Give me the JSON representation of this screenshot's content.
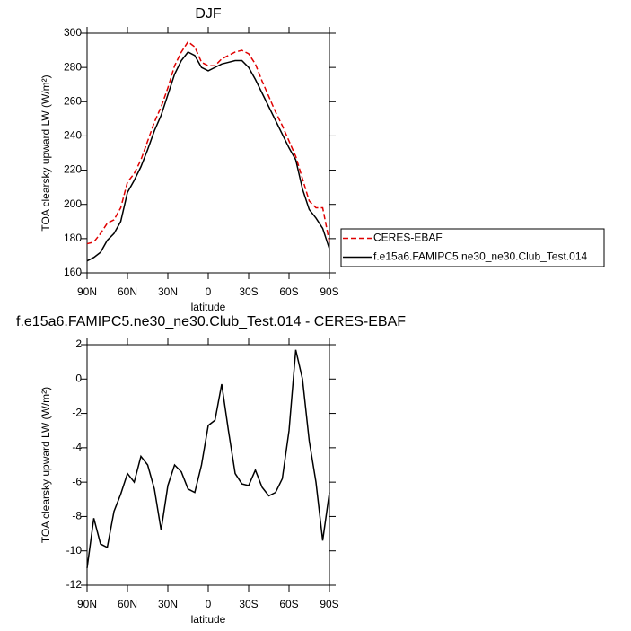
{
  "chart_data": [
    {
      "type": "line",
      "title": "DJF",
      "xlabel": "latitude",
      "ylabel": "TOA clearsky upward LW (W/m²)",
      "x": [
        90,
        85,
        80,
        75,
        70,
        65,
        60,
        55,
        50,
        45,
        40,
        35,
        30,
        25,
        20,
        15,
        10,
        5,
        0,
        -5,
        -10,
        -15,
        -20,
        -25,
        -30,
        -35,
        -40,
        -45,
        -50,
        -55,
        -60,
        -65,
        -70,
        -75,
        -80,
        -85,
        -90
      ],
      "xlim": [
        90,
        -90
      ],
      "xticks": [
        {
          "value": 90,
          "label": "90N"
        },
        {
          "value": 60,
          "label": "60N"
        },
        {
          "value": 30,
          "label": "30N"
        },
        0,
        {
          "value": -30,
          "label": "30S"
        },
        {
          "value": -60,
          "label": "60S"
        },
        {
          "value": -90,
          "label": "90S"
        }
      ],
      "ylim": [
        160,
        300
      ],
      "yticks": [
        160,
        180,
        200,
        220,
        240,
        260,
        280,
        300
      ],
      "legend": "outside-right",
      "series": [
        {
          "name": "CERES-EBAF",
          "color": "#e00000",
          "line_style": "dashed",
          "values": [
            177,
            178,
            183,
            189,
            191,
            198,
            213,
            218,
            226,
            237,
            248,
            257,
            268,
            281,
            289,
            295,
            292,
            283,
            281,
            281,
            285,
            287,
            289,
            290,
            288,
            282,
            272,
            263,
            254,
            246,
            237,
            228,
            215,
            202,
            198,
            198,
            178
          ]
        },
        {
          "name": "f.e15a6.FAMIPC5.ne30_ne30.Club_Test.014",
          "color": "#000000",
          "line_style": "solid",
          "values": [
            167,
            169,
            172,
            179,
            183,
            190,
            207,
            214,
            222,
            232,
            243,
            252,
            264,
            276,
            284,
            289,
            287,
            280,
            278,
            280,
            282,
            283,
            284,
            284,
            280,
            273,
            265,
            257,
            249,
            241,
            233,
            226,
            209,
            197,
            192,
            186,
            174
          ]
        }
      ]
    },
    {
      "type": "line",
      "title": "f.e15a6.FAMIPC5.ne30_ne30.Club_Test.014 - CERES-EBAF",
      "xlabel": "latitude",
      "ylabel": "TOA clearsky upward LW (W/m²)",
      "x": [
        90,
        85,
        80,
        75,
        70,
        65,
        60,
        55,
        50,
        45,
        40,
        35,
        30,
        25,
        20,
        15,
        10,
        5,
        0,
        -5,
        -10,
        -15,
        -20,
        -25,
        -30,
        -35,
        -40,
        -45,
        -50,
        -55,
        -60,
        -65,
        -70,
        -75,
        -80,
        -85,
        -90
      ],
      "xlim": [
        90,
        -90
      ],
      "xticks": [
        {
          "value": 90,
          "label": "90N"
        },
        {
          "value": 60,
          "label": "60N"
        },
        {
          "value": 30,
          "label": "30N"
        },
        0,
        {
          "value": -30,
          "label": "30S"
        },
        {
          "value": -60,
          "label": "60S"
        },
        {
          "value": -90,
          "label": "90S"
        }
      ],
      "ylim": [
        -12,
        2
      ],
      "yticks": [
        -12,
        -10,
        -8,
        -6,
        -4,
        -2,
        0,
        2
      ],
      "series": [
        {
          "color": "#000000",
          "line_style": "solid",
          "values": [
            -11,
            -8.1,
            -9.6,
            -9.8,
            -7.7,
            -6.7,
            -5.5,
            -6,
            -4.5,
            -5,
            -6.4,
            -8.8,
            -6.2,
            -5,
            -5.4,
            -6.4,
            -6.6,
            -5,
            -2.7,
            -2.4,
            -0.3,
            -3,
            -5.5,
            -6.1,
            -6.2,
            -5.3,
            -6.3,
            -6.8,
            -6.6,
            -5.8,
            -3,
            1.7,
            0,
            -3.6,
            -6,
            -9.4,
            -6.6
          ]
        }
      ]
    }
  ]
}
